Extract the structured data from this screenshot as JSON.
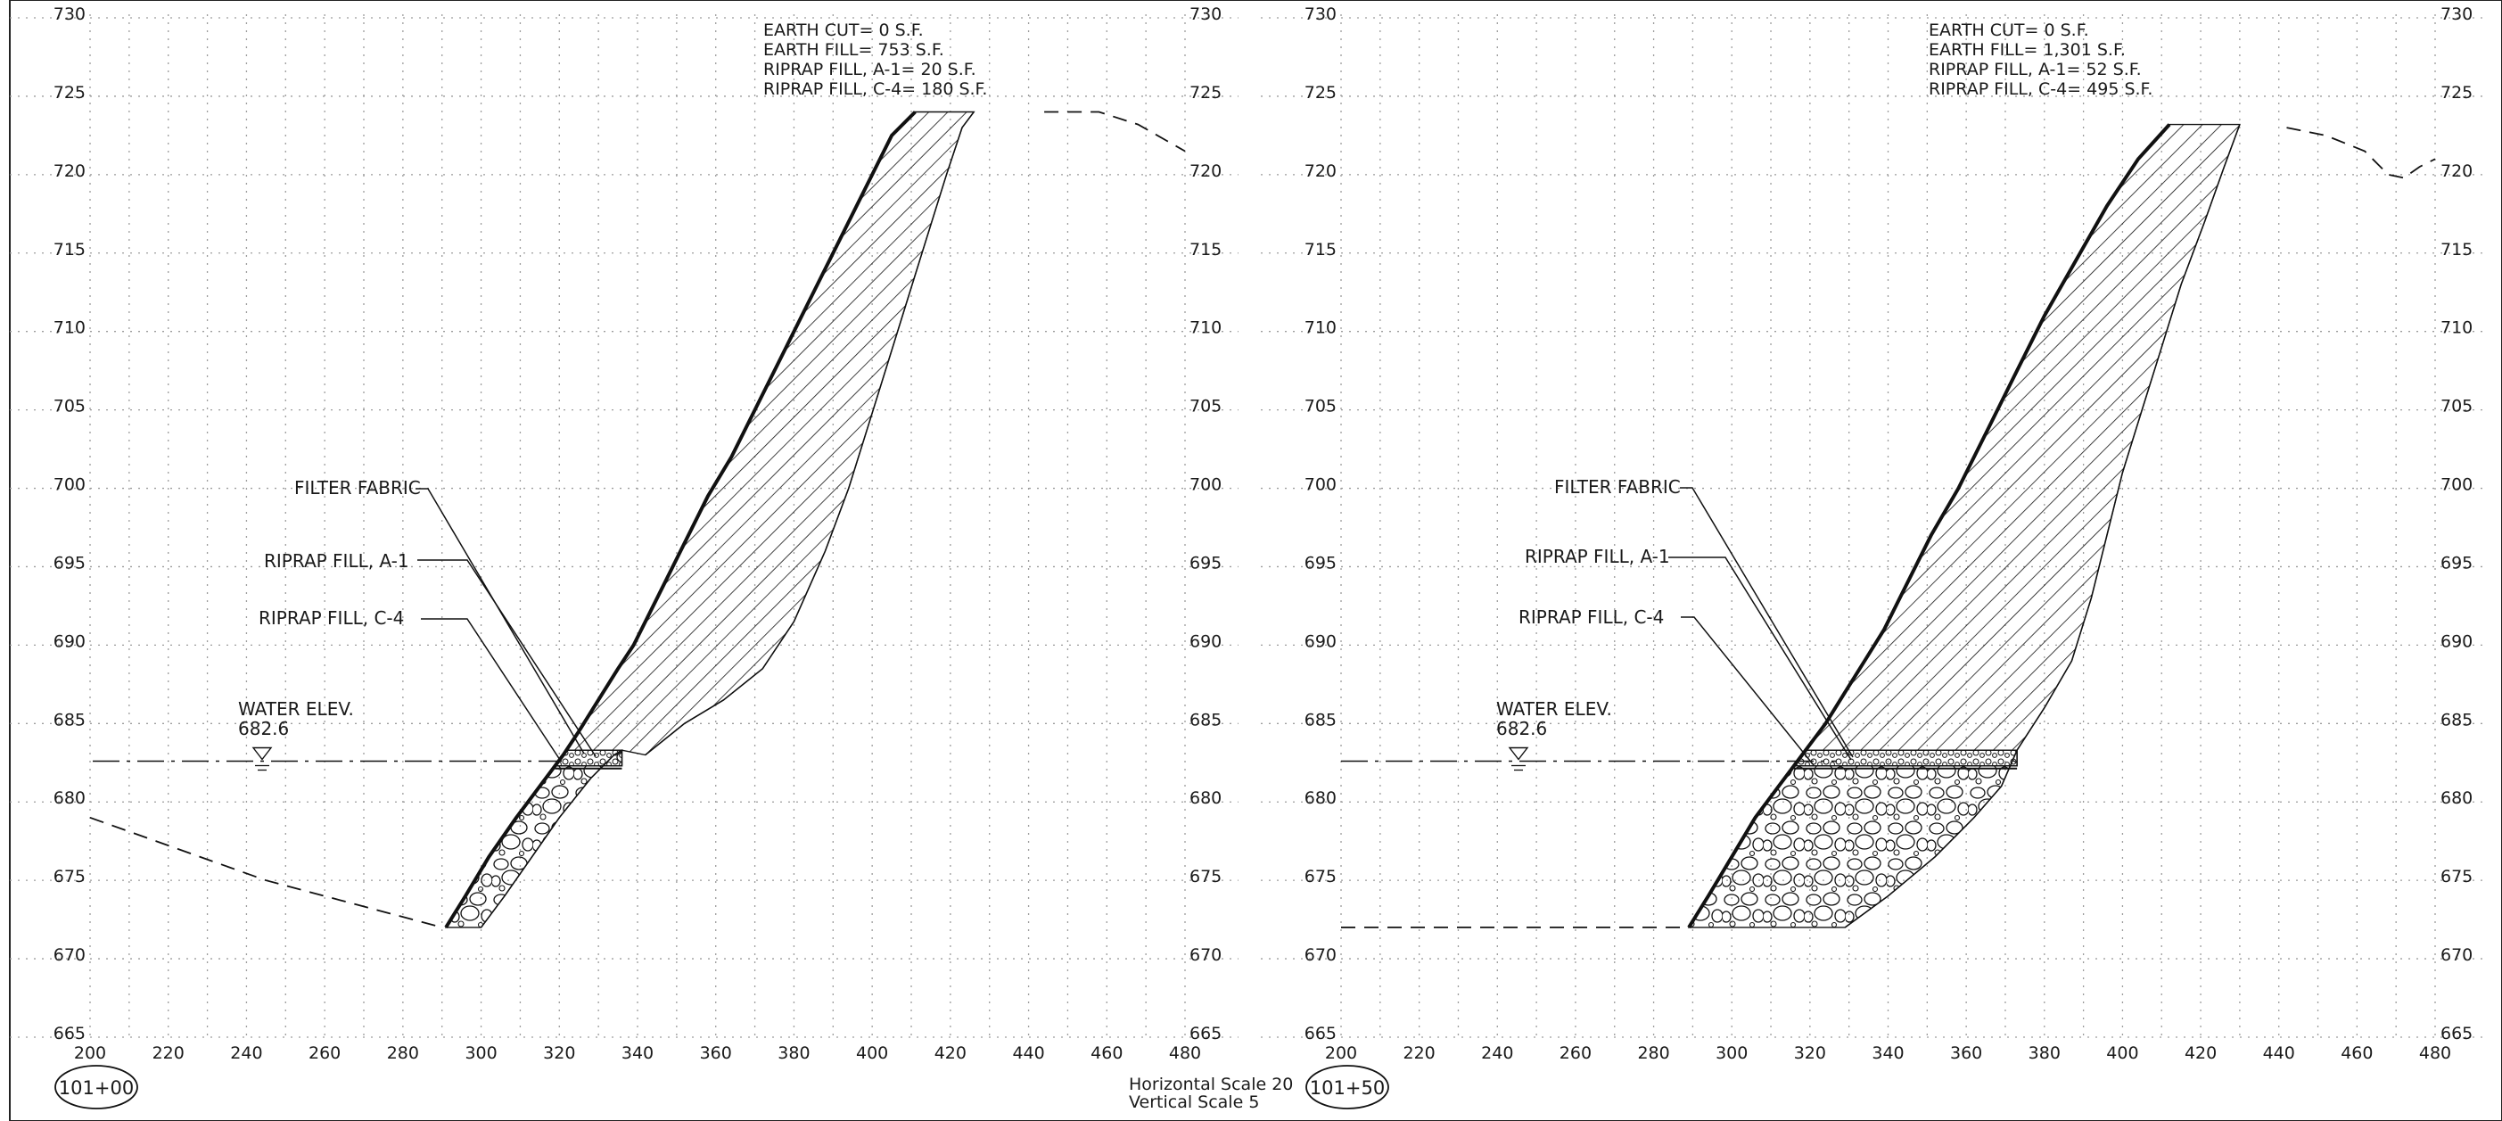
{
  "sections": [
    {
      "station": "101+00",
      "quantities": [
        "EARTH CUT= 0 S.F.",
        "EARTH FILL= 753 S.F.",
        "RIPRAP FILL, A-1= 20 S.F.",
        "RIPRAP FILL, C-4= 180 S.F."
      ],
      "labels": {
        "filter_fabric": "FILTER FABRIC",
        "riprap_a1": "RIPRAP FILL, A-1",
        "riprap_c4": "RIPRAP FILL, C-4",
        "water_title": "WATER ELEV.",
        "water_value": "682.6"
      },
      "elevation_ticks": [
        "730",
        "725",
        "720",
        "715",
        "710",
        "705",
        "700",
        "695",
        "690",
        "685",
        "680",
        "675",
        "670",
        "665"
      ],
      "elevation_ticks_right": [
        "730",
        "725",
        "720",
        "715",
        "710",
        "705",
        "700",
        "695",
        "690",
        "685",
        "680",
        "675",
        "670",
        "665"
      ],
      "offset_ticks": [
        "200",
        "220",
        "240",
        "260",
        "280",
        "300",
        "320",
        "340",
        "360",
        "380",
        "400",
        "420",
        "440",
        "460",
        "480"
      ],
      "chart_data": {
        "type": "line",
        "xlim": [
          200,
          480
        ],
        "ylim": [
          665,
          730
        ],
        "grid": true,
        "x_step": 10,
        "y_step": 5,
        "water_elevation": 682.6,
        "series": [
          {
            "role": "finished-grade",
            "points": [
              [
                291,
                672
              ],
              [
                296,
                674
              ],
              [
                302,
                676.5
              ],
              [
                309,
                679
              ],
              [
                315,
                681
              ],
              [
                321,
                683
              ],
              [
                325,
                684.5
              ],
              [
                330,
                686.5
              ],
              [
                335,
                688.5
              ],
              [
                339,
                690
              ],
              [
                343,
                692
              ],
              [
                348,
                694.5
              ],
              [
                353,
                697
              ],
              [
                358,
                699.5
              ],
              [
                364,
                702
              ],
              [
                370,
                705
              ],
              [
                377,
                708.5
              ],
              [
                384,
                712
              ],
              [
                391,
                715.5
              ],
              [
                398,
                719
              ],
              [
                405,
                722.5
              ],
              [
                411,
                724
              ]
            ]
          },
          {
            "role": "fill-toe-line",
            "points": [
              [
                300,
                672
              ],
              [
                306,
                674
              ],
              [
                313,
                676.5
              ],
              [
                320,
                679
              ],
              [
                328,
                681.5
              ],
              [
                334,
                683
              ],
              [
                336,
                683.3
              ]
            ]
          },
          {
            "role": "original-ground",
            "points": [
              [
                342,
                683
              ],
              [
                352,
                685
              ],
              [
                362,
                686.5
              ],
              [
                372,
                688.5
              ],
              [
                380,
                691.5
              ],
              [
                388,
                696
              ],
              [
                394,
                700
              ],
              [
                399,
                704
              ],
              [
                404,
                708
              ],
              [
                409,
                712
              ],
              [
                414,
                716
              ],
              [
                419,
                720
              ],
              [
                423,
                723
              ],
              [
                426,
                724
              ]
            ]
          },
          {
            "role": "existing-ground-left",
            "points": [
              [
                200,
                679
              ],
              [
                245,
                675
              ],
              [
                290,
                672
              ]
            ]
          },
          {
            "role": "existing-ground-right",
            "points": [
              [
                444,
                724
              ],
              [
                458,
                724
              ],
              [
                468,
                723.2
              ],
              [
                480,
                721.5
              ]
            ]
          }
        ],
        "riprap_top": 683.3,
        "riprap_a1_bottom": 682.3
      }
    },
    {
      "station": "101+50",
      "quantities": [
        "EARTH CUT= 0 S.F.",
        "EARTH FILL= 1,301 S.F.",
        "RIPRAP FILL, A-1= 52 S.F.",
        "RIPRAP FILL, C-4= 495 S.F."
      ],
      "labels": {
        "filter_fabric": "FILTER FABRIC",
        "riprap_a1": "RIPRAP FILL, A-1",
        "riprap_c4": "RIPRAP FILL, C-4",
        "water_title": "WATER ELEV.",
        "water_value": "682.6"
      },
      "elevation_ticks": [
        "730",
        "725",
        "720",
        "715",
        "710",
        "705",
        "700",
        "695",
        "690",
        "685",
        "680",
        "675",
        "670",
        "665"
      ],
      "elevation_ticks_right": [
        "730",
        "725",
        "720",
        "715",
        "710",
        "705",
        "700",
        "695",
        "690",
        "685",
        "680",
        "675",
        "670",
        "665"
      ],
      "offset_ticks": [
        "200",
        "220",
        "240",
        "260",
        "280",
        "300",
        "320",
        "340",
        "360",
        "380",
        "400",
        "420",
        "440",
        "460",
        "480"
      ],
      "chart_data": {
        "type": "line",
        "xlim": [
          200,
          480
        ],
        "ylim": [
          665,
          730
        ],
        "grid": true,
        "x_step": 10,
        "y_step": 5,
        "water_elevation": 682.6,
        "series": [
          {
            "role": "finished-grade",
            "points": [
              [
                289,
                672
              ],
              [
                294,
                674
              ],
              [
                300,
                676.5
              ],
              [
                306,
                679
              ],
              [
                312,
                681
              ],
              [
                318,
                683
              ],
              [
                324,
                685
              ],
              [
                329,
                687
              ],
              [
                334,
                689
              ],
              [
                339,
                691
              ],
              [
                345,
                694
              ],
              [
                351,
                697
              ],
              [
                358,
                700
              ],
              [
                365,
                703.5
              ],
              [
                372,
                707
              ],
              [
                380,
                711
              ],
              [
                388,
                714.5
              ],
              [
                396,
                718
              ],
              [
                404,
                721
              ],
              [
                412,
                723.2
              ]
            ]
          },
          {
            "role": "fill-toe-line",
            "points": [
              [
                329,
                672
              ],
              [
                340,
                674
              ],
              [
                352,
                676.5
              ],
              [
                362,
                679
              ],
              [
                369,
                681
              ],
              [
                373,
                683.3
              ]
            ]
          },
          {
            "role": "original-ground",
            "points": [
              [
                373,
                683.3
              ],
              [
                380,
                686
              ],
              [
                387,
                689
              ],
              [
                392,
                693
              ],
              [
                396,
                697
              ],
              [
                400,
                701
              ],
              [
                405,
                705
              ],
              [
                410,
                709
              ],
              [
                415,
                713
              ],
              [
                421,
                717
              ],
              [
                426,
                720.5
              ],
              [
                430,
                723.2
              ]
            ]
          },
          {
            "role": "existing-ground-left",
            "points": [
              [
                200,
                672
              ],
              [
                289,
                672
              ]
            ]
          },
          {
            "role": "existing-ground-right",
            "points": [
              [
                442,
                723
              ],
              [
                452,
                722.5
              ],
              [
                462,
                721.5
              ],
              [
                468,
                720
              ],
              [
                472,
                719.8
              ],
              [
                476,
                720.5
              ],
              [
                480,
                721
              ]
            ]
          }
        ],
        "riprap_top": 683.3,
        "riprap_a1_bottom": 682.3
      }
    }
  ],
  "scale_note": [
    "Horizontal Scale 20",
    "Vertical Scale 5"
  ]
}
